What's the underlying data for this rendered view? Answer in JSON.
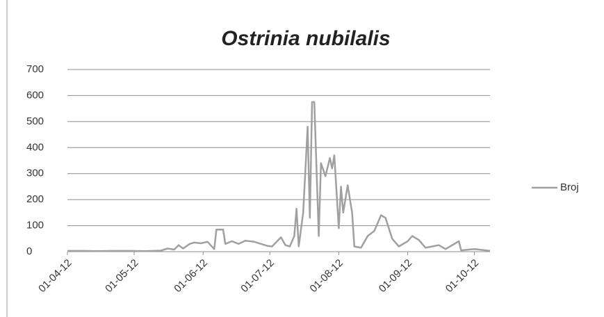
{
  "chart_data": {
    "type": "line",
    "title": "Ostrinia nubilalis",
    "x": [
      "01-04-12",
      "08-04-12",
      "15-04-12",
      "22-04-12",
      "29-04-12",
      "06-05-12",
      "13-05-12",
      "16-05-12",
      "19-05-12",
      "21-05-12",
      "23-05-12",
      "26-05-12",
      "28-05-12",
      "31-05-12",
      "03-06-12",
      "06-06-12",
      "07-06-12",
      "10-06-12",
      "11-06-12",
      "14-06-12",
      "17-06-12",
      "20-06-12",
      "24-06-12",
      "27-06-12",
      "30-06-12",
      "02-07-12",
      "06-07-12",
      "08-07-12",
      "10-07-12",
      "12-07-12",
      "13-07-12",
      "14-07-12",
      "16-07-12",
      "18-07-12",
      "19-07-12",
      "20-07-12",
      "21-07-12",
      "23-07-12",
      "24-07-12",
      "26-07-12",
      "28-07-12",
      "29-07-12",
      "30-07-12",
      "01-08-12",
      "02-08-12",
      "03-08-12",
      "05-08-12",
      "07-08-12",
      "08-08-12",
      "11-08-12",
      "14-08-12",
      "17-08-12",
      "20-08-12",
      "22-08-12",
      "25-08-12",
      "28-08-12",
      "01-09-12",
      "03-09-12",
      "06-09-12",
      "09-09-12",
      "15-09-12",
      "18-09-12",
      "24-09-12",
      "25-09-12",
      "01-10-12",
      "06-10-12",
      "08-10-12"
    ],
    "series": [
      {
        "name": "Broj",
        "color": "#a0a0a0",
        "values": [
          3,
          3,
          2,
          3,
          3,
          2,
          4,
          12,
          8,
          25,
          12,
          30,
          35,
          32,
          38,
          10,
          85,
          85,
          30,
          40,
          30,
          42,
          38,
          30,
          22,
          20,
          55,
          25,
          20,
          60,
          165,
          20,
          150,
          480,
          130,
          575,
          575,
          60,
          340,
          290,
          360,
          320,
          370,
          90,
          250,
          150,
          255,
          150,
          20,
          15,
          60,
          80,
          140,
          130,
          50,
          20,
          40,
          60,
          45,
          15,
          25,
          10,
          40,
          5,
          10,
          5,
          3
        ]
      }
    ],
    "xlim": [
      "01-04-12",
      "08-10-12"
    ],
    "xticks": [
      "01-04-12",
      "01-05-12",
      "01-06-12",
      "01-07-12",
      "01-08-12",
      "01-09-12",
      "01-10-12"
    ],
    "ylim": [
      0,
      700
    ],
    "yticks": [
      0,
      100,
      200,
      300,
      400,
      500,
      600,
      700
    ],
    "grid": true,
    "legend": "right"
  }
}
